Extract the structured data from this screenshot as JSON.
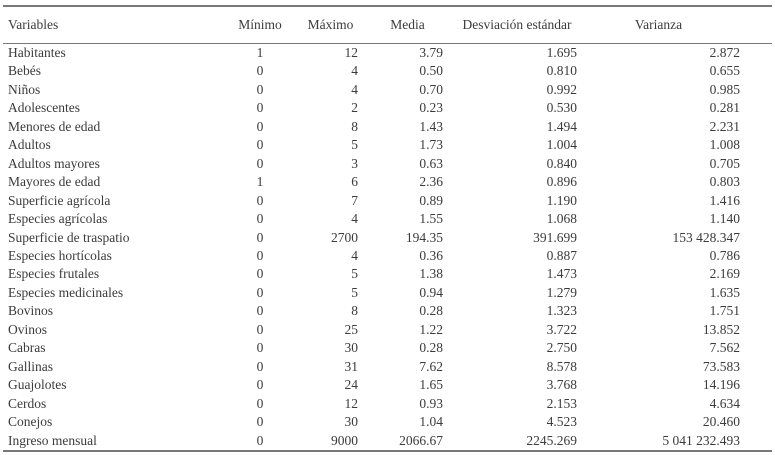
{
  "table": {
    "columns": [
      {
        "label": "Variables",
        "align": "left"
      },
      {
        "label": "Mínimo",
        "align": "center"
      },
      {
        "label": "Máximo",
        "align": "right"
      },
      {
        "label": "Media",
        "align": "right"
      },
      {
        "label": "Desviación estándar",
        "align": "right"
      },
      {
        "label": "Varianza",
        "align": "right"
      }
    ],
    "rows": [
      [
        "Habitantes",
        "1",
        "12",
        "3.79",
        "1.695",
        "2.872"
      ],
      [
        "Bebés",
        "0",
        "4",
        "0.50",
        "0.810",
        "0.655"
      ],
      [
        "Niños",
        "0",
        "4",
        "0.70",
        "0.992",
        "0.985"
      ],
      [
        "Adolescentes",
        "0",
        "2",
        "0.23",
        "0.530",
        "0.281"
      ],
      [
        "Menores de edad",
        "0",
        "8",
        "1.43",
        "1.494",
        "2.231"
      ],
      [
        "Adultos",
        "0",
        "5",
        "1.73",
        "1.004",
        "1.008"
      ],
      [
        "Adultos mayores",
        "0",
        "3",
        "0.63",
        "0.840",
        "0.705"
      ],
      [
        "Mayores de edad",
        "1",
        "6",
        "2.36",
        "0.896",
        "0.803"
      ],
      [
        "Superficie agrícola",
        "0",
        "7",
        "0.89",
        "1.190",
        "1.416"
      ],
      [
        "Especies agrícolas",
        "0",
        "4",
        "1.55",
        "1.068",
        "1.140"
      ],
      [
        "Superficie de traspatio",
        "0",
        "2700",
        "194.35",
        "391.699",
        "153 428.347"
      ],
      [
        "Especies hortícolas",
        "0",
        "4",
        "0.36",
        "0.887",
        "0.786"
      ],
      [
        "Especies frutales",
        "0",
        "5",
        "1.38",
        "1.473",
        "2.169"
      ],
      [
        "Especies medicinales",
        "0",
        "5",
        "0.94",
        "1.279",
        "1.635"
      ],
      [
        "Bovinos",
        "0",
        "8",
        "0.28",
        "1.323",
        "1.751"
      ],
      [
        "Ovinos",
        "0",
        "25",
        "1.22",
        "3.722",
        "13.852"
      ],
      [
        "Cabras",
        "0",
        "30",
        "0.28",
        "2.750",
        "7.562"
      ],
      [
        "Gallinas",
        "0",
        "31",
        "7.62",
        "8.578",
        "73.583"
      ],
      [
        "Guajolotes",
        "0",
        "24",
        "1.65",
        "3.768",
        "14.196"
      ],
      [
        "Cerdos",
        "0",
        "12",
        "0.93",
        "2.153",
        "4.634"
      ],
      [
        "Conejos",
        "0",
        "30",
        "1.04",
        "4.523",
        "20.460"
      ],
      [
        "Ingreso mensual",
        "0",
        "9000",
        "2066.67",
        "2245.269",
        "5 041 232.493"
      ]
    ]
  },
  "colors": {
    "background": "#ffffff",
    "text": "#3b3b3b",
    "rule": "#77777c"
  }
}
